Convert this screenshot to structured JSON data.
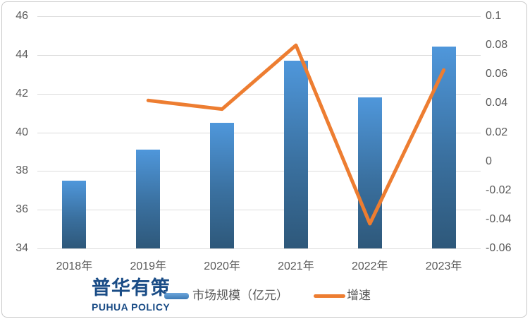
{
  "chart_data": {
    "type": "bar+line combo",
    "categories": [
      "2018年",
      "2019年",
      "2020年",
      "2021年",
      "2022年",
      "2023年"
    ],
    "series": [
      {
        "name": "市场规模（亿元）",
        "type": "bar",
        "axis": "left",
        "values": [
          37.5,
          39.1,
          40.5,
          43.7,
          41.8,
          44.45
        ]
      },
      {
        "name": "增速",
        "type": "line",
        "axis": "right",
        "values": [
          null,
          0.042,
          0.036,
          0.08,
          -0.043,
          0.063
        ]
      }
    ],
    "left_axis": {
      "min": 34,
      "max": 46,
      "tick_step": 2,
      "ticks": [
        "46",
        "44",
        "42",
        "40",
        "38",
        "36",
        "34"
      ]
    },
    "right_axis": {
      "min": -0.06,
      "max": 0.1,
      "tick_step": 0.02,
      "ticks": [
        "0.1",
        "0.08",
        "0.06",
        "0.04",
        "0.02",
        "0",
        "-0.02",
        "-0.04",
        "-0.06"
      ]
    },
    "grid": "horizontal",
    "legend_position": "bottom-center"
  },
  "legend": {
    "bar_label": "市场规模（亿元）",
    "line_label": "增速"
  },
  "logo": {
    "cn": "普华有策",
    "en": "PUHUA POLICY"
  },
  "colors": {
    "bar_top": "#4f97db",
    "bar_bottom": "#2e587a",
    "line": "#ed7d31",
    "grid": "#dcdcdc",
    "tick_text": "#595959",
    "logo_blue": "#1a4c86"
  }
}
